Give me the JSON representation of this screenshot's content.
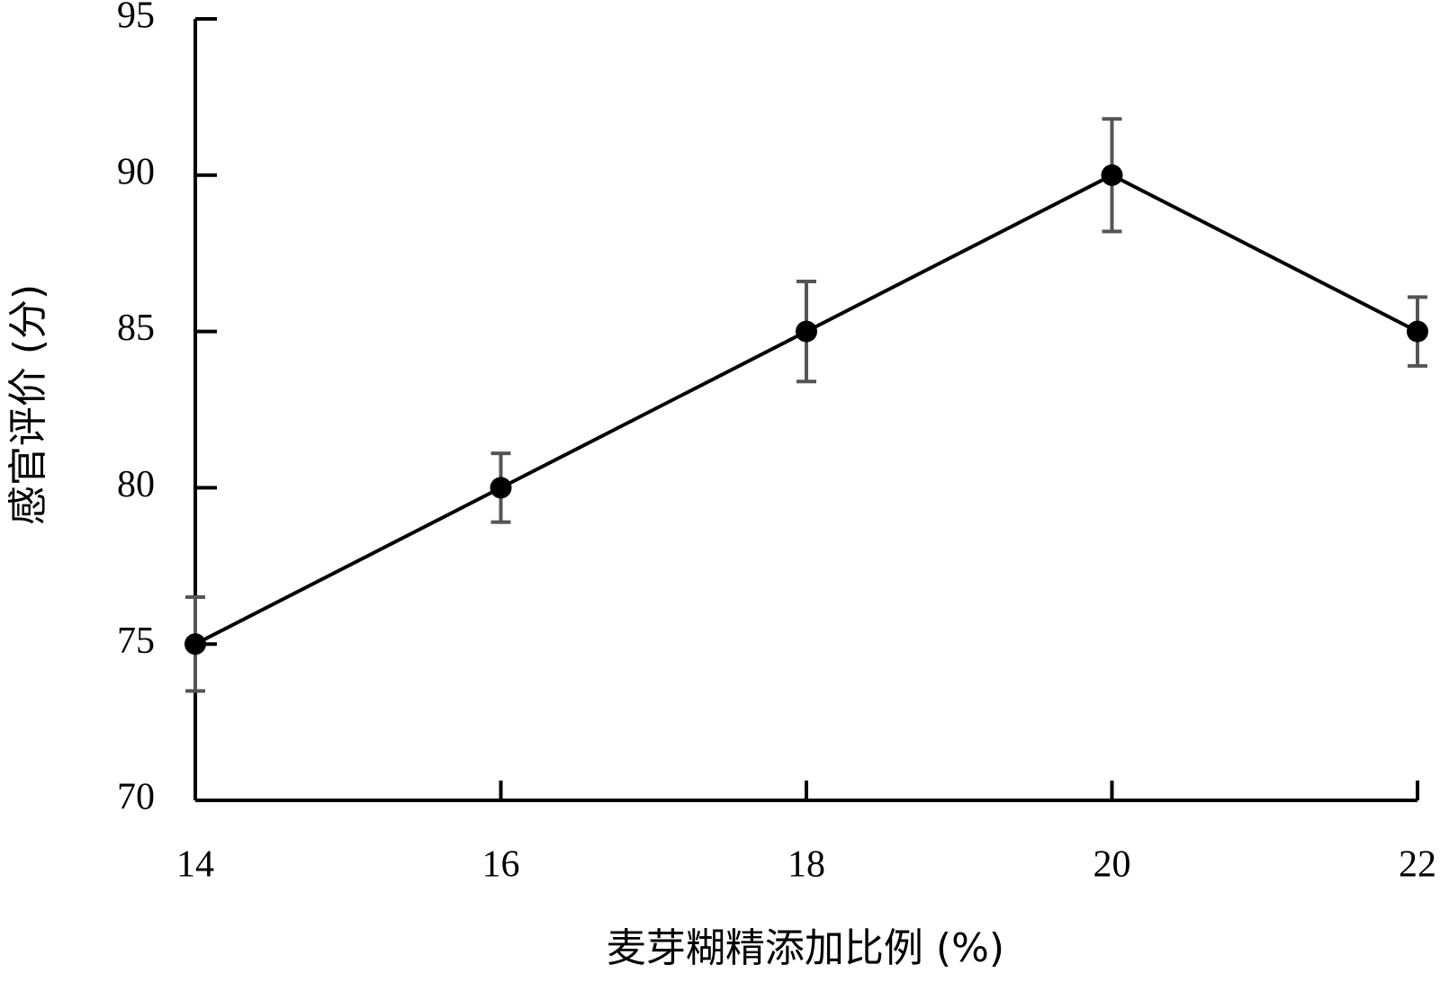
{
  "chart_data": {
    "type": "line",
    "x_label": "麦芽糊精添加比例 (%)",
    "y_label": "感官评价 (分)",
    "x": [
      14,
      16,
      18,
      20,
      22
    ],
    "series": [
      {
        "color": "#000000",
        "values": [
          75,
          80,
          85,
          90,
          85
        ],
        "errors": [
          1.5,
          1.1,
          1.6,
          1.8,
          1.1
        ]
      }
    ],
    "xlim": [
      14,
      22
    ],
    "xticks": [
      14,
      16,
      18,
      20,
      22
    ],
    "ylim": [
      70,
      95
    ],
    "yticks": [
      70,
      75,
      80,
      85,
      90,
      95
    ]
  }
}
